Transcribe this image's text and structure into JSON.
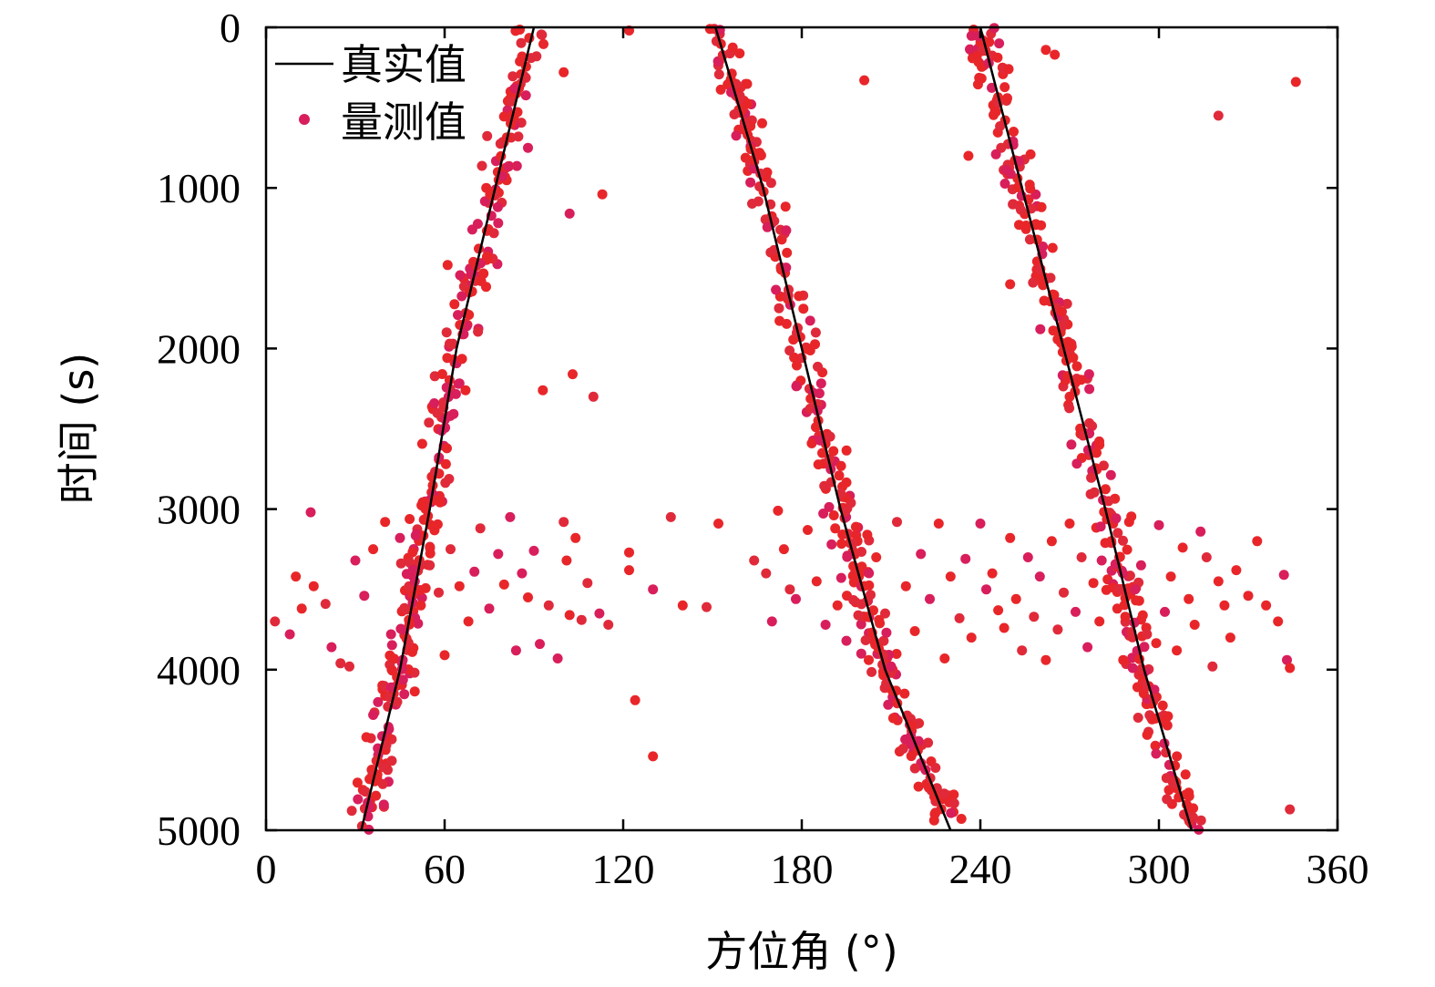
{
  "chart_data": {
    "type": "scatter",
    "xlabel": "方位角 (°)",
    "ylabel": "时间 (s)",
    "xlim": [
      0,
      360
    ],
    "ylim": [
      0,
      5000
    ],
    "y_inverted": true,
    "grid": false,
    "legend_position": "top-left",
    "x_ticks": [
      "0",
      "60",
      "120",
      "180",
      "240",
      "300",
      "360"
    ],
    "y_ticks": [
      "0",
      "1000",
      "2000",
      "3000",
      "4000",
      "5000"
    ],
    "series": [
      {
        "name": "真实值",
        "kind": "line",
        "color": "#000000",
        "tracks": [
          {
            "x": [
              90,
              77,
              64,
              55,
              45,
              32
            ],
            "y": [
              0,
              1000,
              2000,
              3000,
              4000,
              5000
            ]
          },
          {
            "x": [
              151,
              167,
              180,
              193,
              208,
              230
            ],
            "y": [
              0,
              1000,
              2000,
              3000,
              4000,
              5000
            ]
          },
          {
            "x": [
              240,
              254,
              268,
              282,
              295,
              311
            ],
            "y": [
              0,
              1000,
              2000,
              3000,
              4000,
              5000
            ]
          }
        ]
      },
      {
        "name": "量测值",
        "kind": "scatter",
        "color": "#e8262a",
        "color_alt": "#d81e5b",
        "points_per_track": 300,
        "spread_deg": 2.8,
        "clutter_points": [
          [
            3,
            3700
          ],
          [
            8,
            3780
          ],
          [
            10,
            3420
          ],
          [
            12,
            3620
          ],
          [
            15,
            3020
          ],
          [
            16,
            3480
          ],
          [
            20,
            3590
          ],
          [
            22,
            3860
          ],
          [
            25,
            3960
          ],
          [
            28,
            3980
          ],
          [
            30,
            3320
          ],
          [
            33,
            3540
          ],
          [
            36,
            3250
          ],
          [
            40,
            3080
          ],
          [
            42,
            3780
          ],
          [
            45,
            3180
          ],
          [
            48,
            3690
          ],
          [
            50,
            3450
          ],
          [
            52,
            3600
          ],
          [
            55,
            3350
          ],
          [
            58,
            3520
          ],
          [
            60,
            3910
          ],
          [
            62,
            3250
          ],
          [
            65,
            3480
          ],
          [
            68,
            3700
          ],
          [
            70,
            3390
          ],
          [
            72,
            3120
          ],
          [
            75,
            3620
          ],
          [
            78,
            3280
          ],
          [
            80,
            3470
          ],
          [
            82,
            3050
          ],
          [
            84,
            3880
          ],
          [
            86,
            3400
          ],
          [
            88,
            3550
          ],
          [
            90,
            3260
          ],
          [
            92,
            3840
          ],
          [
            95,
            3600
          ],
          [
            98,
            3930
          ],
          [
            100,
            3080
          ],
          [
            101,
            3320
          ],
          [
            102,
            3660
          ],
          [
            104,
            3180
          ],
          [
            106,
            3690
          ],
          [
            108,
            3460
          ],
          [
            122,
            20
          ],
          [
            122,
            3270
          ],
          [
            122,
            3380
          ],
          [
            124,
            4190
          ],
          [
            130,
            4540
          ],
          [
            136,
            3050
          ],
          [
            148,
            3610
          ],
          [
            152,
            3090
          ],
          [
            164,
            3320
          ],
          [
            168,
            3400
          ],
          [
            170,
            3700
          ],
          [
            172,
            3010
          ],
          [
            174,
            3250
          ],
          [
            176,
            3500
          ],
          [
            178,
            3560
          ],
          [
            182,
            3130
          ],
          [
            185,
            3450
          ],
          [
            188,
            3720
          ],
          [
            190,
            3220
          ],
          [
            192,
            3600
          ],
          [
            195,
            3820
          ],
          [
            198,
            3390
          ],
          [
            200,
            3900
          ],
          [
            202,
            3160
          ],
          [
            205,
            3300
          ],
          [
            208,
            3650
          ],
          [
            210,
            3980
          ],
          [
            212,
            3080
          ],
          [
            215,
            3480
          ],
          [
            218,
            3760
          ],
          [
            220,
            3280
          ],
          [
            223,
            3560
          ],
          [
            226,
            3090
          ],
          [
            228,
            3930
          ],
          [
            230,
            3420
          ],
          [
            233,
            3680
          ],
          [
            235,
            3310
          ],
          [
            237,
            3800
          ],
          [
            240,
            3090
          ],
          [
            242,
            3500
          ],
          [
            244,
            3400
          ],
          [
            246,
            3630
          ],
          [
            248,
            3740
          ],
          [
            250,
            3180
          ],
          [
            252,
            3560
          ],
          [
            254,
            3880
          ],
          [
            256,
            3300
          ],
          [
            258,
            3670
          ],
          [
            260,
            3420
          ],
          [
            262,
            3940
          ],
          [
            264,
            3200
          ],
          [
            266,
            3750
          ],
          [
            268,
            3520
          ],
          [
            270,
            3090
          ],
          [
            272,
            3640
          ],
          [
            274,
            3300
          ],
          [
            276,
            3860
          ],
          [
            278,
            3460
          ],
          [
            280,
            3700
          ],
          [
            284,
            3200
          ],
          [
            286,
            3620
          ],
          [
            288,
            3940
          ],
          [
            290,
            3080
          ],
          [
            292,
            3500
          ],
          [
            294,
            3350
          ],
          [
            296,
            3780
          ],
          [
            300,
            3100
          ],
          [
            302,
            3640
          ],
          [
            304,
            3420
          ],
          [
            306,
            3880
          ],
          [
            308,
            3240
          ],
          [
            310,
            3560
          ],
          [
            312,
            3720
          ],
          [
            314,
            3140
          ],
          [
            316,
            3300
          ],
          [
            318,
            3980
          ],
          [
            320,
            3450
          ],
          [
            322,
            3600
          ],
          [
            324,
            3800
          ],
          [
            326,
            3380
          ],
          [
            330,
            3540
          ],
          [
            333,
            3200
          ],
          [
            336,
            3600
          ],
          [
            340,
            3700
          ],
          [
            342,
            3410
          ],
          [
            343,
            3940
          ],
          [
            344,
            3990
          ],
          [
            344,
            4870
          ],
          [
            346,
            340
          ],
          [
            320,
            550
          ],
          [
            201,
            330
          ],
          [
            113,
            1040
          ],
          [
            102,
            1160
          ],
          [
            93,
            2260
          ],
          [
            103,
            2160
          ],
          [
            110,
            2300
          ],
          [
            61,
            1480
          ],
          [
            67,
            2260
          ],
          [
            88,
            750
          ],
          [
            74,
            1000
          ],
          [
            100,
            280
          ],
          [
            130,
            3500
          ],
          [
            140,
            3600
          ],
          [
            112,
            3650
          ],
          [
            115,
            3720
          ],
          [
            250,
            1600
          ],
          [
            246,
            470
          ],
          [
            236,
            800
          ],
          [
            270,
            2300
          ],
          [
            262,
            140
          ],
          [
            265,
            170
          ],
          [
            280,
            2600
          ]
        ]
      }
    ]
  }
}
